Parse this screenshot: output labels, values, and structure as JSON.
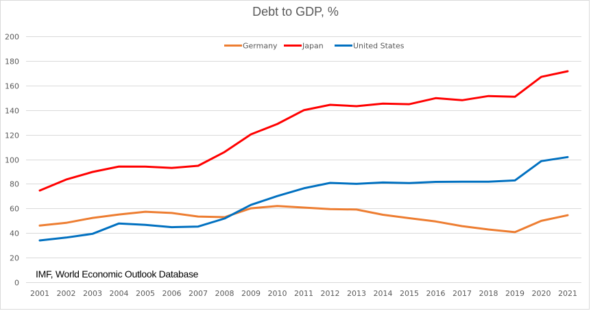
{
  "chart_data": {
    "type": "line",
    "title": "Debt to GDP, %",
    "xlabel": "",
    "ylabel": "",
    "annotation": "IMF, World Economic Outlook Database",
    "x": [
      "2001",
      "2002",
      "2003",
      "2004",
      "2005",
      "2006",
      "2007",
      "2008",
      "2009",
      "2010",
      "2011",
      "2012",
      "2013",
      "2014",
      "2015",
      "2016",
      "2017",
      "2018",
      "2019",
      "2020",
      "2021"
    ],
    "ylim": [
      0,
      200
    ],
    "yticks": [
      0,
      20,
      40,
      60,
      80,
      100,
      120,
      140,
      160,
      180,
      200
    ],
    "grid": true,
    "legend_position": "top-center",
    "series": [
      {
        "name": "Germany",
        "color": "#ED7D31",
        "values": [
          46.1,
          48.3,
          52.3,
          55.1,
          57.3,
          56.3,
          53.4,
          52.9,
          60.1,
          62.0,
          60.7,
          59.5,
          59.1,
          54.9,
          52.1,
          49.4,
          45.6,
          42.9,
          40.7,
          49.9,
          54.5
        ]
      },
      {
        "name": "Japan",
        "color": "#FF0000",
        "values": [
          74.6,
          83.5,
          89.7,
          94.1,
          94.0,
          93.0,
          94.7,
          105.9,
          120.3,
          128.7,
          139.9,
          144.3,
          143.2,
          145.3,
          144.8,
          149.7,
          148.0,
          151.4,
          150.8,
          167.0,
          171.6
        ]
      },
      {
        "name": "United States",
        "color": "#0070C0",
        "values": [
          34.0,
          36.3,
          39.4,
          47.8,
          46.7,
          44.8,
          45.3,
          51.8,
          62.9,
          70.1,
          76.4,
          80.8,
          80.0,
          81.1,
          80.6,
          81.6,
          81.7,
          81.7,
          82.8,
          98.5,
          101.8
        ]
      }
    ]
  }
}
